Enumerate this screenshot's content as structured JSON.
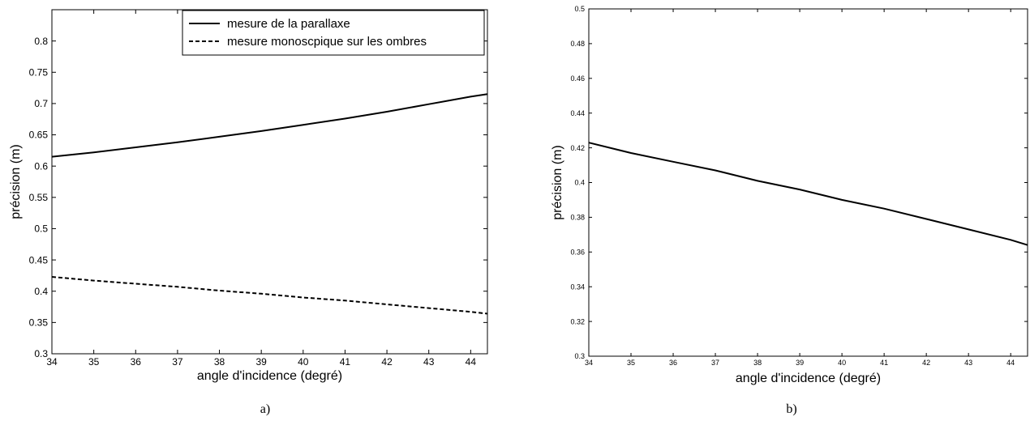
{
  "chart_data": [
    {
      "type": "line",
      "caption": "a)",
      "xlabel": "angle d'incidence (degré)",
      "ylabel": "précision (m)",
      "xlim": [
        34,
        44.4
      ],
      "ylim": [
        0.3,
        0.85
      ],
      "xticks": [
        34,
        35,
        36,
        37,
        38,
        39,
        40,
        41,
        42,
        43,
        44
      ],
      "yticks": [
        0.3,
        0.35,
        0.4,
        0.45,
        0.5,
        0.55,
        0.6,
        0.65,
        0.7,
        0.75,
        0.8
      ],
      "grid": false,
      "legend_position": "top-right",
      "series": [
        {
          "name": "mesure de la parallaxe",
          "style": "solid",
          "color": "#000000",
          "x": [
            34,
            35,
            36,
            37,
            38,
            39,
            40,
            41,
            42,
            43,
            44,
            44.4
          ],
          "y": [
            0.615,
            0.622,
            0.63,
            0.638,
            0.647,
            0.656,
            0.666,
            0.676,
            0.687,
            0.699,
            0.711,
            0.715
          ]
        },
        {
          "name": "mesure monoscpique sur les ombres",
          "style": "dashed",
          "color": "#000000",
          "x": [
            34,
            35,
            36,
            37,
            38,
            39,
            40,
            41,
            42,
            43,
            44,
            44.4
          ],
          "y": [
            0.423,
            0.417,
            0.412,
            0.407,
            0.401,
            0.396,
            0.39,
            0.385,
            0.379,
            0.373,
            0.367,
            0.364
          ]
        }
      ]
    },
    {
      "type": "line",
      "caption": "b)",
      "xlabel": "angle d'incidence (degré)",
      "ylabel": "précision (m)",
      "xlim": [
        34,
        44.4
      ],
      "ylim": [
        0.3,
        0.5
      ],
      "xticks": [
        34,
        35,
        36,
        37,
        38,
        39,
        40,
        41,
        42,
        43,
        44
      ],
      "yticks": [
        0.3,
        0.32,
        0.34,
        0.36,
        0.38,
        0.4,
        0.42,
        0.44,
        0.46,
        0.48,
        0.5
      ],
      "grid": false,
      "series": [
        {
          "style": "solid",
          "color": "#000000",
          "x": [
            34,
            35,
            36,
            37,
            38,
            39,
            40,
            41,
            42,
            43,
            44,
            44.4
          ],
          "y": [
            0.423,
            0.417,
            0.412,
            0.407,
            0.401,
            0.396,
            0.39,
            0.385,
            0.379,
            0.373,
            0.367,
            0.364
          ]
        }
      ]
    }
  ]
}
